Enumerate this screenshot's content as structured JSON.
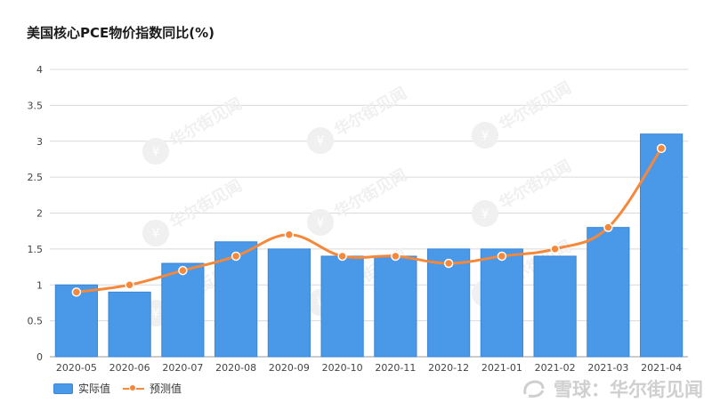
{
  "title": "美国核心PCE物价指数同比(%)",
  "watermark": "华尔街见闻",
  "corner_watermark": "雪球：华尔街见闻",
  "colors": {
    "bar": "#4a98e8",
    "bar_edge": "#3b86d6",
    "line": "#f5883a",
    "grid": "#d9d9d9"
  },
  "chart_data": {
    "type": "bar",
    "title": "美国核心PCE物价指数同比(%)",
    "categories": [
      "2020-05",
      "2020-06",
      "2020-07",
      "2020-08",
      "2020-09",
      "2020-10",
      "2020-11",
      "2020-12",
      "2021-01",
      "2021-02",
      "2021-03",
      "2021-04"
    ],
    "series": [
      {
        "name": "实际值",
        "type": "bar",
        "values": [
          1.0,
          0.9,
          1.3,
          1.6,
          1.5,
          1.4,
          1.4,
          1.5,
          1.5,
          1.4,
          1.8,
          3.1
        ]
      },
      {
        "name": "预测值",
        "type": "line",
        "values": [
          0.9,
          1.0,
          1.2,
          1.4,
          1.7,
          1.4,
          1.4,
          1.3,
          1.4,
          1.5,
          1.8,
          2.9
        ]
      }
    ],
    "ylim": [
      0,
      4
    ],
    "yticks": [
      "0",
      "0.5",
      "1",
      "1.5",
      "2",
      "2.5",
      "3",
      "3.5",
      "4"
    ],
    "grid": true,
    "legend": "bottom-left"
  }
}
